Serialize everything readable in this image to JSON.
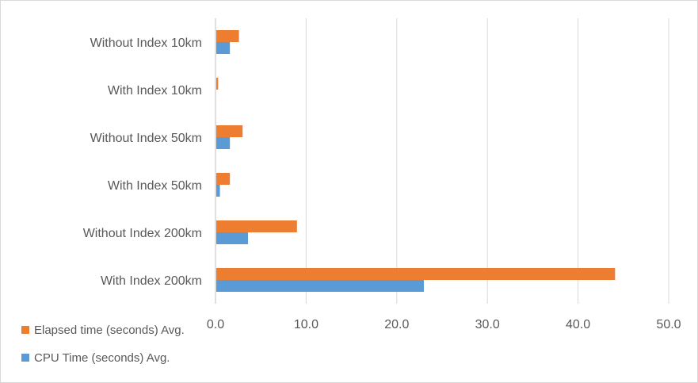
{
  "chart_data": {
    "type": "bar",
    "orientation": "horizontal",
    "title": "",
    "xlabel": "",
    "ylabel": "",
    "categories": [
      "Without Index 10km",
      "With Index 10km",
      "Without Index 50km",
      "With Index 50km",
      "Without Index 200km",
      "With Index 200km"
    ],
    "series": [
      {
        "name": "Elapsed time (seconds) Avg.",
        "color": "#ED7D31",
        "values": [
          2.5,
          0.2,
          2.9,
          1.5,
          8.9,
          44.0
        ]
      },
      {
        "name": "CPU Time (seconds) Avg.",
        "color": "#5B9BD5",
        "values": [
          1.5,
          0.0,
          1.5,
          0.4,
          3.5,
          22.9
        ]
      }
    ],
    "xlim": [
      0,
      50
    ],
    "xticks": [
      "0.0",
      "10.0",
      "20.0",
      "30.0",
      "40.0",
      "50.0"
    ],
    "grid": true,
    "legend_position": "bottom-left"
  }
}
